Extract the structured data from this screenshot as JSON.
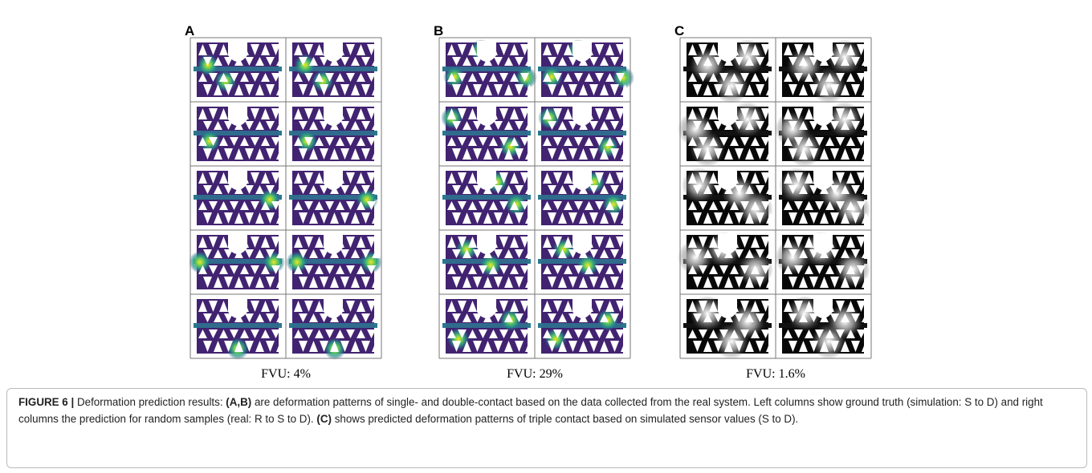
{
  "figure": {
    "panels": [
      {
        "label": "A",
        "caption": "FVU: 4%"
      },
      {
        "label": "B",
        "caption": "FVU: 29%"
      },
      {
        "label": "C",
        "caption": "FVU: 1.6%"
      }
    ],
    "caption": [
      {
        "text": "FIGURE 6 |",
        "bold": true
      },
      {
        "text": " Deformation prediction results: ",
        "bold": false
      },
      {
        "text": "(A,B)",
        "bold": true
      },
      {
        "text": " are deformation patterns of single- and double-contact based on the data collected from the real system. Left columns show ground truth (simulation: S to D) and right columns the prediction for random samples (real: R to S to D). ",
        "bold": false
      },
      {
        "text": "(C)",
        "bold": true
      },
      {
        "text": " shows predicted deformation patterns of triple contact based on simulated sensor values (S to D).",
        "bold": false
      }
    ]
  }
}
